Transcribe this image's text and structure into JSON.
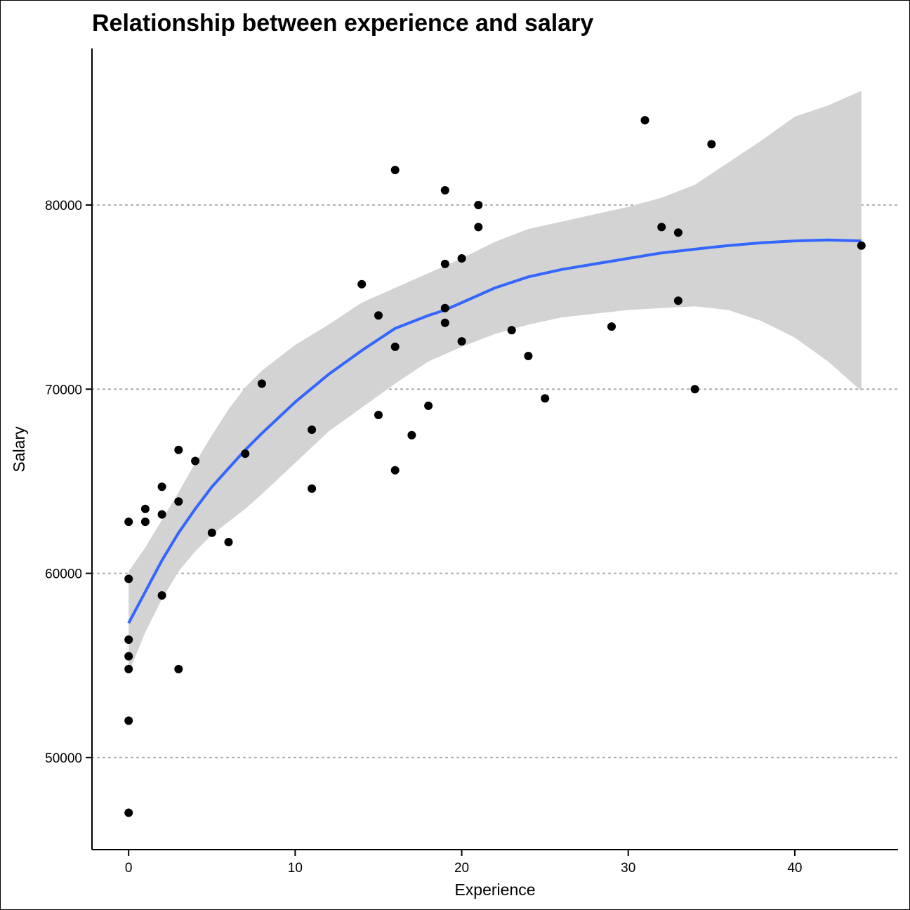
{
  "chart_data": {
    "type": "scatter",
    "title": "Relationship between experience and salary",
    "xlabel": "Experience",
    "ylabel": "Salary",
    "xlim": [
      -2.2,
      46.2
    ],
    "ylim": [
      45000,
      88500
    ],
    "x_ticks": [
      0,
      10,
      20,
      30,
      40
    ],
    "y_ticks": [
      50000,
      60000,
      70000,
      80000
    ],
    "grid": "horizontal dotted at y ticks",
    "legend": "none",
    "colors": {
      "points": "#000000",
      "smooth_line": "#3366FF",
      "confidence_band": "#D3D3D3",
      "grid": "#B0B0B0"
    },
    "points": [
      {
        "x": 0,
        "y": 47000
      },
      {
        "x": 0,
        "y": 52000
      },
      {
        "x": 0,
        "y": 54800
      },
      {
        "x": 0,
        "y": 55500
      },
      {
        "x": 0,
        "y": 56400
      },
      {
        "x": 0,
        "y": 59700
      },
      {
        "x": 0,
        "y": 62800
      },
      {
        "x": 1,
        "y": 62800
      },
      {
        "x": 1,
        "y": 63500
      },
      {
        "x": 2,
        "y": 58800
      },
      {
        "x": 2,
        "y": 63200
      },
      {
        "x": 2,
        "y": 64700
      },
      {
        "x": 3,
        "y": 54800
      },
      {
        "x": 3,
        "y": 63900
      },
      {
        "x": 3,
        "y": 66700
      },
      {
        "x": 4,
        "y": 66100
      },
      {
        "x": 5,
        "y": 62200
      },
      {
        "x": 6,
        "y": 61700
      },
      {
        "x": 7,
        "y": 66500
      },
      {
        "x": 8,
        "y": 70300
      },
      {
        "x": 11,
        "y": 64600
      },
      {
        "x": 11,
        "y": 67800
      },
      {
        "x": 14,
        "y": 75700
      },
      {
        "x": 15,
        "y": 68600
      },
      {
        "x": 15,
        "y": 74000
      },
      {
        "x": 16,
        "y": 65600
      },
      {
        "x": 16,
        "y": 72300
      },
      {
        "x": 16,
        "y": 81900
      },
      {
        "x": 17,
        "y": 67500
      },
      {
        "x": 18,
        "y": 69100
      },
      {
        "x": 19,
        "y": 73600
      },
      {
        "x": 19,
        "y": 74400
      },
      {
        "x": 19,
        "y": 76800
      },
      {
        "x": 19,
        "y": 80800
      },
      {
        "x": 20,
        "y": 72600
      },
      {
        "x": 20,
        "y": 77100
      },
      {
        "x": 21,
        "y": 78800
      },
      {
        "x": 21,
        "y": 80000
      },
      {
        "x": 23,
        "y": 73200
      },
      {
        "x": 24,
        "y": 71800
      },
      {
        "x": 25,
        "y": 69500
      },
      {
        "x": 29,
        "y": 73400
      },
      {
        "x": 31,
        "y": 84600
      },
      {
        "x": 32,
        "y": 78800
      },
      {
        "x": 33,
        "y": 74800
      },
      {
        "x": 33,
        "y": 78500
      },
      {
        "x": 34,
        "y": 70000
      },
      {
        "x": 35,
        "y": 83300
      },
      {
        "x": 44,
        "y": 77800
      }
    ],
    "smooth": {
      "x": [
        0,
        1,
        2,
        3,
        4,
        5,
        6,
        7,
        8,
        10,
        12,
        14,
        16,
        18,
        19,
        20,
        22,
        24,
        26,
        28,
        30,
        32,
        34,
        36,
        38,
        40,
        42,
        44
      ],
      "y": [
        57300,
        59000,
        60700,
        62200,
        63500,
        64700,
        65700,
        66700,
        67600,
        69300,
        70800,
        72100,
        73300,
        74000,
        74300,
        74700,
        75500,
        76100,
        76500,
        76800,
        77100,
        77400,
        77600,
        77800,
        77950,
        78050,
        78100,
        78050
      ],
      "lower": [
        54600,
        56800,
        58600,
        60100,
        61200,
        62100,
        62800,
        63500,
        64300,
        66000,
        67700,
        69000,
        70300,
        71500,
        71900,
        72300,
        73000,
        73500,
        73900,
        74100,
        74300,
        74400,
        74500,
        74300,
        73700,
        72800,
        71500,
        69900
      ],
      "upper": [
        60100,
        61400,
        62900,
        64400,
        66000,
        67500,
        68900,
        70100,
        71000,
        72400,
        73500,
        74700,
        75500,
        76300,
        76700,
        77100,
        78000,
        78700,
        79100,
        79500,
        79900,
        80400,
        81100,
        82300,
        83500,
        84800,
        85400,
        86200
      ]
    }
  }
}
